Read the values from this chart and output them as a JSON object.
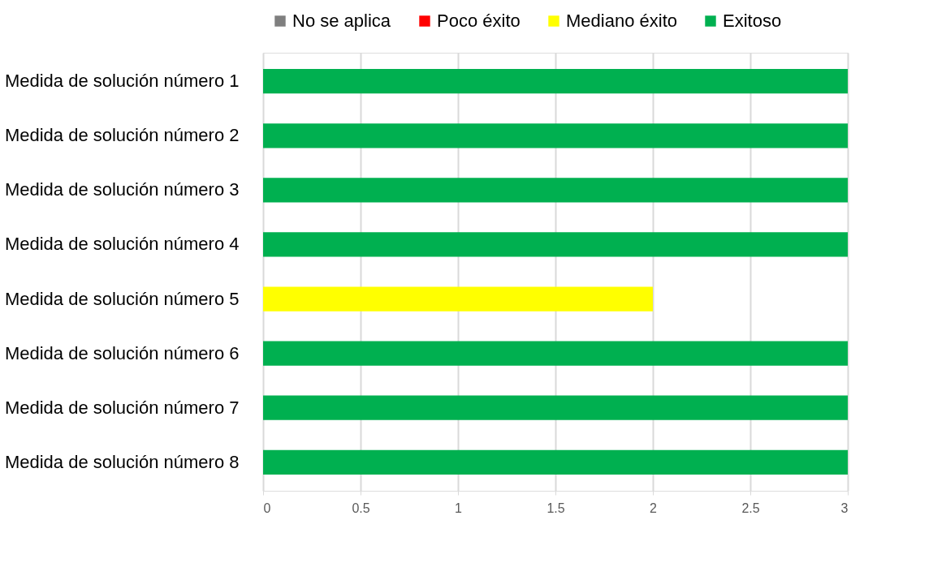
{
  "chart_data": {
    "type": "bar",
    "orientation": "horizontal",
    "categories": [
      "Medida de solución número 1",
      "Medida de solución número 2",
      "Medida de solución número 3",
      "Medida de solución número 4",
      "Medida de solución número 5",
      "Medida de solución número 6",
      "Medida de solución número 7",
      "Medida de solución número 8"
    ],
    "series": [
      {
        "name": "No se aplica",
        "color": "#7f7f7f",
        "values": [
          null,
          null,
          null,
          null,
          null,
          null,
          null,
          null
        ]
      },
      {
        "name": "Poco éxito",
        "color": "#ff0000",
        "values": [
          null,
          null,
          null,
          null,
          null,
          null,
          null,
          null
        ]
      },
      {
        "name": "Mediano éxito",
        "color": "#ffff00",
        "values": [
          null,
          null,
          null,
          null,
          2,
          null,
          null,
          null
        ]
      },
      {
        "name": "Exitoso",
        "color": "#00b050",
        "values": [
          3,
          3,
          3,
          3,
          null,
          3,
          3,
          3
        ]
      }
    ],
    "xlim": [
      0,
      3
    ],
    "xticks": [
      0,
      0.5,
      1,
      1.5,
      2,
      2.5,
      3
    ],
    "grid": "x",
    "legend": "top"
  }
}
